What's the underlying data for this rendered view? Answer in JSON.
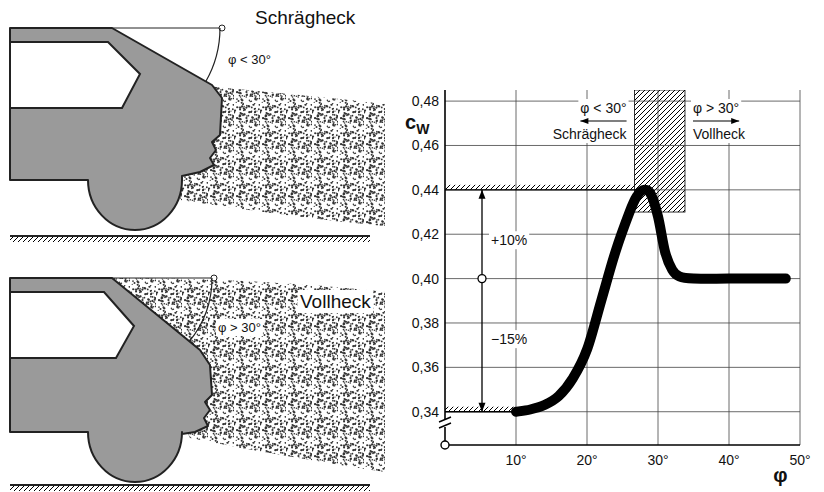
{
  "chart_data": {
    "type": "line",
    "x": [
      10,
      12,
      14,
      16,
      18,
      20,
      22,
      24,
      26,
      27,
      28,
      29,
      30,
      31,
      32,
      33,
      35,
      40,
      45,
      48
    ],
    "values": [
      0.34,
      0.341,
      0.343,
      0.347,
      0.355,
      0.368,
      0.39,
      0.412,
      0.43,
      0.437,
      0.44,
      0.438,
      0.428,
      0.412,
      0.404,
      0.401,
      0.4,
      0.4,
      0.4,
      0.4
    ],
    "color": "#000000",
    "line_style": "solid",
    "grid": true,
    "xlim": [
      0,
      50
    ],
    "ylim": [
      0.325,
      0.485
    ],
    "xticks": [
      {
        "value": 10,
        "label": "10°"
      },
      {
        "value": 20,
        "label": "20°"
      },
      {
        "value": 30,
        "label": "30°"
      },
      {
        "value": 40,
        "label": "40°"
      },
      {
        "value": 50,
        "label": "50°"
      }
    ],
    "yticks": [
      {
        "value": 0.34,
        "label": "0,34"
      },
      {
        "value": 0.36,
        "label": "0,36"
      },
      {
        "value": 0.38,
        "label": "0,38"
      },
      {
        "value": 0.4,
        "label": "0,40"
      },
      {
        "value": 0.42,
        "label": "0,42"
      },
      {
        "value": 0.44,
        "label": "0,44"
      },
      {
        "value": 0.46,
        "label": "0,46"
      },
      {
        "value": 0.48,
        "label": "0,48"
      }
    ],
    "y_label": {
      "text": "c",
      "subscript": "W"
    },
    "x_label": "φ",
    "reference_values": [
      0.44,
      0.34
    ],
    "percent_changes": {
      "base": 0.4,
      "changes": [
        {
          "to": 0.44,
          "label": "+10%"
        },
        {
          "to": 0.34,
          "label": "−15%"
        }
      ]
    },
    "transition_band": {
      "x": [
        26.7,
        33.8
      ],
      "y": [
        0.43,
        0.485
      ]
    },
    "regions": [
      {
        "condition": "φ < 30°",
        "name": "Schrägheck"
      },
      {
        "condition": "φ > 30°",
        "name": "Vollheck"
      }
    ]
  },
  "car_figures": [
    {
      "name": "Schrägheck",
      "angle": "φ < 30°"
    },
    {
      "name": "Vollheck",
      "angle": "φ > 30°"
    }
  ]
}
